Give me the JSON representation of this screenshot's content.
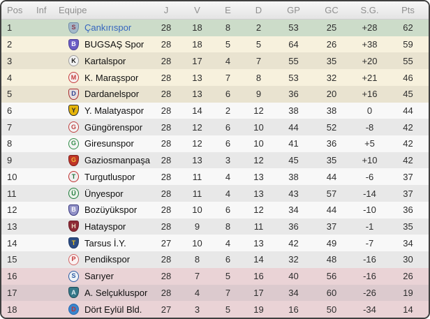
{
  "colors": {
    "frame_border": "#3f3f3f",
    "header_text": "#8f8f8f",
    "zone_champion": "#ccdcc9",
    "zone_playoff_light": "#f7f1dd",
    "zone_playoff_dark": "#e9e3d0",
    "zone_mid_light": "#f8f8f8",
    "zone_mid_dark": "#e8e8e8",
    "zone_relegation_light": "#ead3d6",
    "zone_relegation_dark": "#dccace",
    "highlighted_team_text": "#3465be"
  },
  "table": {
    "columns": [
      {
        "id": "pos",
        "label": "Pos"
      },
      {
        "id": "inf",
        "label": "Inf"
      },
      {
        "id": "equipe",
        "label": "Equipe"
      },
      {
        "id": "j",
        "label": "J"
      },
      {
        "id": "v",
        "label": "V"
      },
      {
        "id": "e",
        "label": "E"
      },
      {
        "id": "d",
        "label": "D"
      },
      {
        "id": "gp",
        "label": "GP"
      },
      {
        "id": "gc",
        "label": "GC"
      },
      {
        "id": "sg",
        "label": "S.G."
      },
      {
        "id": "pts",
        "label": "Pts"
      }
    ],
    "stat_keys": [
      "j",
      "v",
      "e",
      "d",
      "gp",
      "gc",
      "sg",
      "pts"
    ],
    "rows": [
      {
        "pos": "1",
        "inf": "",
        "team": "Çankırıspor",
        "j": "28",
        "v": "18",
        "e": "8",
        "d": "2",
        "gp": "53",
        "gc": "25",
        "sg": "+28",
        "pts": "62",
        "zone": "champion",
        "shade": "",
        "highlighted": true,
        "badge": {
          "shape": "shield",
          "outer": "#6f8ca8",
          "inner": "#a3b8c9",
          "letter": "S",
          "letter_color": "#8a3a4a"
        }
      },
      {
        "pos": "2",
        "inf": "",
        "team": "BUGSAŞ Spor",
        "j": "28",
        "v": "18",
        "e": "5",
        "d": "5",
        "gp": "64",
        "gc": "26",
        "sg": "+38",
        "pts": "59",
        "zone": "playoff",
        "shade": "light",
        "highlighted": false,
        "badge": {
          "shape": "shield",
          "outer": "#4a3f96",
          "inner": "#6b5cc4",
          "letter": "B",
          "letter_color": "#ffffff"
        }
      },
      {
        "pos": "3",
        "inf": "",
        "team": "Kartalspor",
        "j": "28",
        "v": "17",
        "e": "4",
        "d": "7",
        "gp": "55",
        "gc": "35",
        "sg": "+20",
        "pts": "55",
        "zone": "playoff",
        "shade": "dark",
        "highlighted": false,
        "badge": {
          "shape": "circle",
          "outer": "#9f9f9f",
          "inner": "#f2f2f2",
          "letter": "K",
          "letter_color": "#1a1a1a"
        }
      },
      {
        "pos": "4",
        "inf": "",
        "team": "K. Maraşspor",
        "j": "28",
        "v": "13",
        "e": "7",
        "d": "8",
        "gp": "53",
        "gc": "32",
        "sg": "+21",
        "pts": "46",
        "zone": "playoff",
        "shade": "light",
        "highlighted": false,
        "badge": {
          "shape": "circle",
          "outer": "#c43b3b",
          "inner": "#f7eded",
          "letter": "M",
          "letter_color": "#c43b3b"
        }
      },
      {
        "pos": "5",
        "inf": "",
        "team": "Dardanelspor",
        "j": "28",
        "v": "13",
        "e": "6",
        "d": "9",
        "gp": "36",
        "gc": "20",
        "sg": "+16",
        "pts": "45",
        "zone": "playoff",
        "shade": "dark",
        "highlighted": false,
        "badge": {
          "shape": "shield",
          "outer": "#a82a2a",
          "inner": "#e6dede",
          "letter": "D",
          "letter_color": "#2a3f8f"
        }
      },
      {
        "pos": "6",
        "inf": "",
        "team": "Y. Malatyaspor",
        "j": "28",
        "v": "14",
        "e": "2",
        "d": "12",
        "gp": "38",
        "gc": "38",
        "sg": "0",
        "pts": "44",
        "zone": "mid",
        "shade": "light",
        "highlighted": false,
        "badge": {
          "shape": "shield",
          "outer": "#2b2b2b",
          "inner": "#e6b50a",
          "letter": "Y",
          "letter_color": "#2b2b2b"
        }
      },
      {
        "pos": "7",
        "inf": "",
        "team": "Güngörenspor",
        "j": "28",
        "v": "12",
        "e": "6",
        "d": "10",
        "gp": "44",
        "gc": "52",
        "sg": "-8",
        "pts": "42",
        "zone": "mid",
        "shade": "dark",
        "highlighted": false,
        "badge": {
          "shape": "circle",
          "outer": "#bf4040",
          "inner": "#f4f4f4",
          "letter": "G",
          "letter_color": "#bf4040"
        }
      },
      {
        "pos": "8",
        "inf": "",
        "team": "Giresunspor",
        "j": "28",
        "v": "12",
        "e": "6",
        "d": "10",
        "gp": "41",
        "gc": "36",
        "sg": "+5",
        "pts": "42",
        "zone": "mid",
        "shade": "light",
        "highlighted": false,
        "badge": {
          "shape": "circle",
          "outer": "#2f8c46",
          "inner": "#f4f4f4",
          "letter": "G",
          "letter_color": "#2f8c46"
        }
      },
      {
        "pos": "9",
        "inf": "",
        "team": "Gaziosmanpaşa",
        "j": "28",
        "v": "13",
        "e": "3",
        "d": "12",
        "gp": "45",
        "gc": "35",
        "sg": "+10",
        "pts": "42",
        "zone": "mid",
        "shade": "dark",
        "highlighted": false,
        "badge": {
          "shape": "shield",
          "outer": "#7e1e1e",
          "inner": "#c03527",
          "letter": "G",
          "letter_color": "#f0b83a"
        }
      },
      {
        "pos": "10",
        "inf": "",
        "team": "Turgutluspor",
        "j": "28",
        "v": "11",
        "e": "4",
        "d": "13",
        "gp": "38",
        "gc": "44",
        "sg": "-6",
        "pts": "37",
        "zone": "mid",
        "shade": "light",
        "highlighted": false,
        "badge": {
          "shape": "circle",
          "outer": "#bf3030",
          "inner": "#f0f0f0",
          "letter": "T",
          "letter_color": "#20703a"
        }
      },
      {
        "pos": "11",
        "inf": "",
        "team": "Ünyespor",
        "j": "28",
        "v": "11",
        "e": "4",
        "d": "13",
        "gp": "43",
        "gc": "57",
        "sg": "-14",
        "pts": "37",
        "zone": "mid",
        "shade": "dark",
        "highlighted": false,
        "badge": {
          "shape": "circle",
          "outer": "#1e7a39",
          "inner": "#e9f2e9",
          "letter": "Ü",
          "letter_color": "#1e7a39"
        }
      },
      {
        "pos": "12",
        "inf": "",
        "team": "Bozüyükspor",
        "j": "28",
        "v": "10",
        "e": "6",
        "d": "12",
        "gp": "34",
        "gc": "44",
        "sg": "-10",
        "pts": "36",
        "zone": "mid",
        "shade": "light",
        "highlighted": false,
        "badge": {
          "shape": "shield",
          "outer": "#34347c",
          "inner": "#9393c8",
          "letter": "B",
          "letter_color": "#ffffff"
        }
      },
      {
        "pos": "13",
        "inf": "",
        "team": "Hatayspor",
        "j": "28",
        "v": "9",
        "e": "8",
        "d": "11",
        "gp": "36",
        "gc": "37",
        "sg": "-1",
        "pts": "35",
        "zone": "mid",
        "shade": "dark",
        "highlighted": false,
        "badge": {
          "shape": "shield",
          "outer": "#6b1a24",
          "inner": "#8e2a35",
          "letter": "H",
          "letter_color": "#ead9c0"
        }
      },
      {
        "pos": "14",
        "inf": "",
        "team": "Tarsus İ.Y.",
        "j": "27",
        "v": "10",
        "e": "4",
        "d": "13",
        "gp": "42",
        "gc": "49",
        "sg": "-7",
        "pts": "34",
        "zone": "mid",
        "shade": "light",
        "highlighted": false,
        "badge": {
          "shape": "shield",
          "outer": "#1e3866",
          "inner": "#2c4c84",
          "letter": "T",
          "letter_color": "#e8c020"
        }
      },
      {
        "pos": "15",
        "inf": "",
        "team": "Pendikspor",
        "j": "28",
        "v": "8",
        "e": "6",
        "d": "14",
        "gp": "32",
        "gc": "48",
        "sg": "-16",
        "pts": "30",
        "zone": "mid",
        "shade": "dark",
        "highlighted": false,
        "badge": {
          "shape": "circle",
          "outer": "#d26767",
          "inner": "#faf2f2",
          "letter": "P",
          "letter_color": "#c23535"
        }
      },
      {
        "pos": "16",
        "inf": "",
        "team": "Sarıyer",
        "j": "28",
        "v": "7",
        "e": "5",
        "d": "16",
        "gp": "40",
        "gc": "56",
        "sg": "-16",
        "pts": "26",
        "zone": "relegation",
        "shade": "light",
        "highlighted": false,
        "badge": {
          "shape": "circle",
          "outer": "#2a5aa2",
          "inner": "#eef3f8",
          "letter": "S",
          "letter_color": "#2a5aa2"
        }
      },
      {
        "pos": "17",
        "inf": "",
        "team": "A. Selçukluspor",
        "j": "28",
        "v": "4",
        "e": "7",
        "d": "17",
        "gp": "34",
        "gc": "60",
        "sg": "-26",
        "pts": "19",
        "zone": "relegation",
        "shade": "dark",
        "highlighted": false,
        "badge": {
          "shape": "shield",
          "outer": "#1e4a58",
          "inner": "#357888",
          "letter": "A",
          "letter_color": "#dcecf2"
        }
      },
      {
        "pos": "18",
        "inf": "",
        "team": "Dört Eylül Bld.",
        "j": "27",
        "v": "3",
        "e": "5",
        "d": "19",
        "gp": "16",
        "gc": "50",
        "sg": "-34",
        "pts": "14",
        "zone": "relegation",
        "shade": "light",
        "highlighted": false,
        "badge": {
          "shape": "circle",
          "outer": "#2468b2",
          "inner": "#3a85cc",
          "letter": "D",
          "letter_color": "#c22f2f"
        }
      }
    ]
  }
}
